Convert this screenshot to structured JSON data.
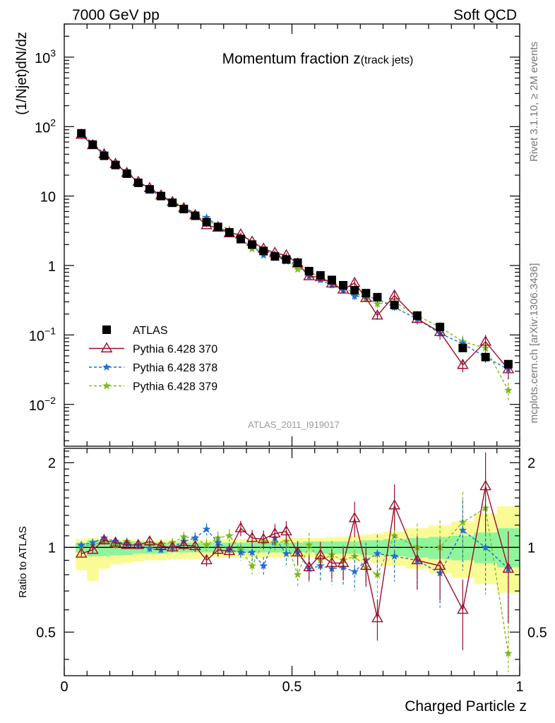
{
  "header": {
    "left": "7000 GeV pp",
    "right": "Soft QCD"
  },
  "plot": {
    "title_main": "Momentum fraction ",
    "title_var": "z",
    "title_sub": "(track jets)",
    "analysis": "ATLAS_2011_I919017",
    "side_top": "Rivet 3.1.10, ≥ 2M events",
    "side_bottom": "mcplots.cern.ch [arXiv:1306.3436]"
  },
  "colors": {
    "data": "#000000",
    "p370": "#9b0d2a",
    "p378": "#1f6fd6",
    "p379": "#7cbb1c",
    "band_inner": "#8ff59a",
    "band_outer": "#fbfb96"
  },
  "chart_data": [
    {
      "type": "line",
      "ylabel": "(1/Njet)dN/dz",
      "yscale": "log",
      "xlim": [
        0,
        1
      ],
      "ylim": [
        0.0025,
        3000
      ],
      "yticks": [
        "10^3",
        "10^2",
        "10",
        "1",
        "10^-1",
        "10^-2"
      ],
      "legend_position": "bottom-left",
      "x": [
        0.0375,
        0.0625,
        0.0875,
        0.1125,
        0.1375,
        0.1625,
        0.1875,
        0.2125,
        0.2375,
        0.2625,
        0.2875,
        0.3125,
        0.3375,
        0.3625,
        0.3875,
        0.4125,
        0.4375,
        0.4625,
        0.4875,
        0.5125,
        0.5375,
        0.5625,
        0.5875,
        0.6125,
        0.6375,
        0.6625,
        0.6875,
        0.725,
        0.775,
        0.825,
        0.875,
        0.925,
        0.975
      ],
      "series": [
        {
          "name": "ATLAS",
          "marker": "square",
          "values": [
            80,
            55,
            38,
            28,
            21,
            15.5,
            12.5,
            10,
            8,
            6.5,
            5.2,
            4.2,
            3.6,
            3.0,
            2.4,
            2.0,
            1.62,
            1.35,
            1.22,
            1.1,
            0.83,
            0.72,
            0.62,
            0.52,
            0.44,
            0.4,
            0.35,
            0.27,
            0.19,
            0.13,
            0.065,
            0.048,
            0.038
          ]
        },
        {
          "name": "Pythia 6.428 370",
          "marker": "open-triangle",
          "values": [
            76,
            54,
            40,
            29,
            21.5,
            16,
            13,
            10.2,
            8.2,
            6.7,
            5.3,
            3.8,
            3.5,
            2.9,
            2.8,
            2.2,
            1.75,
            1.52,
            1.4,
            1.07,
            0.7,
            0.68,
            0.55,
            0.45,
            0.56,
            0.34,
            0.19,
            0.37,
            0.17,
            0.11,
            0.037,
            0.08,
            0.032
          ]
        },
        {
          "name": "Pythia 6.428 378",
          "marker": "star",
          "values": [
            82,
            57,
            41,
            29,
            21.7,
            15.9,
            12.4,
            9.8,
            8.0,
            6.9,
            5.6,
            4.9,
            3.75,
            2.95,
            2.3,
            1.9,
            1.4,
            1.45,
            1.15,
            1.05,
            0.7,
            0.62,
            0.52,
            0.44,
            0.36,
            0.36,
            0.33,
            0.25,
            0.17,
            0.105,
            0.075,
            0.048,
            0.032
          ]
        },
        {
          "name": "Pythia 6.428 379",
          "marker": "star",
          "values": [
            81,
            56,
            40,
            28.5,
            22,
            15.8,
            12.8,
            10.3,
            8.3,
            7.1,
            5.6,
            4.3,
            3.9,
            3.3,
            2.35,
            1.73,
            1.7,
            1.4,
            1.28,
            0.88,
            0.85,
            0.65,
            0.58,
            0.47,
            0.41,
            0.34,
            0.28,
            0.3,
            0.19,
            0.13,
            0.08,
            0.065,
            0.016
          ]
        }
      ]
    },
    {
      "type": "line",
      "xlabel": "Charged Particle z",
      "ylabel": "Ratio to ATLAS",
      "xlim": [
        0,
        1
      ],
      "ylim": [
        0.35,
        2.25
      ],
      "xticks": [
        "0",
        "0.5",
        "1"
      ],
      "yticks": [
        "0.5",
        "1",
        "2"
      ],
      "band_edges": [
        0.025,
        0.05,
        0.075,
        0.1,
        0.125,
        0.15,
        0.175,
        0.2,
        0.225,
        0.25,
        0.275,
        0.3,
        0.325,
        0.35,
        0.375,
        0.4,
        0.425,
        0.45,
        0.475,
        0.5,
        0.525,
        0.55,
        0.575,
        0.6,
        0.625,
        0.65,
        0.675,
        0.7,
        0.75,
        0.8,
        0.85,
        0.9,
        0.95,
        1.0
      ],
      "band_inner_low": [
        0.96,
        0.93,
        0.93,
        0.94,
        0.94,
        0.95,
        0.95,
        0.95,
        0.96,
        0.96,
        0.96,
        0.96,
        0.96,
        0.96,
        0.96,
        0.96,
        0.96,
        0.96,
        0.96,
        0.96,
        0.96,
        0.95,
        0.95,
        0.95,
        0.95,
        0.94,
        0.94,
        0.93,
        0.92,
        0.91,
        0.9,
        0.88,
        0.85
      ],
      "band_inner_high": [
        1.04,
        1.06,
        1.06,
        1.05,
        1.05,
        1.05,
        1.05,
        1.04,
        1.04,
        1.04,
        1.04,
        1.04,
        1.04,
        1.04,
        1.04,
        1.04,
        1.04,
        1.04,
        1.04,
        1.04,
        1.05,
        1.05,
        1.05,
        1.05,
        1.05,
        1.06,
        1.06,
        1.07,
        1.08,
        1.09,
        1.1,
        1.13,
        1.17
      ],
      "band_outer_low": [
        0.83,
        0.76,
        0.84,
        0.87,
        0.88,
        0.89,
        0.9,
        0.9,
        0.91,
        0.91,
        0.91,
        0.92,
        0.92,
        0.92,
        0.92,
        0.92,
        0.92,
        0.92,
        0.92,
        0.92,
        0.92,
        0.91,
        0.91,
        0.9,
        0.9,
        0.89,
        0.88,
        0.86,
        0.84,
        0.81,
        0.78,
        0.74,
        0.69
      ],
      "band_outer_high": [
        1.07,
        1.08,
        1.07,
        1.07,
        1.07,
        1.06,
        1.06,
        1.06,
        1.06,
        1.06,
        1.06,
        1.06,
        1.07,
        1.07,
        1.07,
        1.07,
        1.07,
        1.07,
        1.08,
        1.08,
        1.08,
        1.08,
        1.09,
        1.09,
        1.1,
        1.11,
        1.12,
        1.14,
        1.17,
        1.2,
        1.24,
        1.32,
        1.4
      ],
      "x": [
        0.0375,
        0.0625,
        0.0875,
        0.1125,
        0.1375,
        0.1625,
        0.1875,
        0.2125,
        0.2375,
        0.2625,
        0.2875,
        0.3125,
        0.3375,
        0.3625,
        0.3875,
        0.4125,
        0.4375,
        0.4625,
        0.4875,
        0.5125,
        0.5375,
        0.5625,
        0.5875,
        0.6125,
        0.6375,
        0.6625,
        0.6875,
        0.725,
        0.775,
        0.825,
        0.875,
        0.925,
        0.975
      ],
      "series": [
        {
          "name": "Pythia 6.428 370",
          "values": [
            0.95,
            0.98,
            1.06,
            1.04,
            1.02,
            1.02,
            1.05,
            1.01,
            1.0,
            1.02,
            1.01,
            0.9,
            0.98,
            0.97,
            1.17,
            1.08,
            1.07,
            1.12,
            1.14,
            0.96,
            0.85,
            0.94,
            0.88,
            0.88,
            1.27,
            0.86,
            0.56,
            1.41,
            0.9,
            0.86,
            0.6,
            1.65,
            0.84
          ]
        },
        {
          "name": "Pythia 6.428 378",
          "values": [
            1.02,
            1.04,
            1.08,
            1.05,
            1.03,
            1.02,
            0.99,
            0.98,
            1.0,
            1.05,
            1.08,
            1.16,
            1.04,
            0.98,
            0.96,
            0.96,
            0.86,
            1.08,
            0.95,
            0.96,
            0.84,
            0.86,
            0.84,
            0.85,
            0.82,
            0.9,
            0.95,
            0.93,
            0.9,
            0.81,
            1.15,
            1.0,
            0.84
          ]
        },
        {
          "name": "Pythia 6.428 379",
          "values": [
            1.01,
            1.02,
            1.05,
            1.02,
            1.05,
            1.02,
            1.02,
            1.03,
            1.04,
            1.09,
            1.08,
            1.02,
            1.08,
            1.1,
            0.98,
            0.86,
            1.05,
            1.04,
            1.05,
            0.8,
            1.02,
            0.9,
            0.94,
            0.9,
            0.93,
            0.85,
            0.8,
            1.1,
            1.0,
            1.0,
            1.23,
            1.38,
            0.42
          ]
        }
      ]
    }
  ]
}
